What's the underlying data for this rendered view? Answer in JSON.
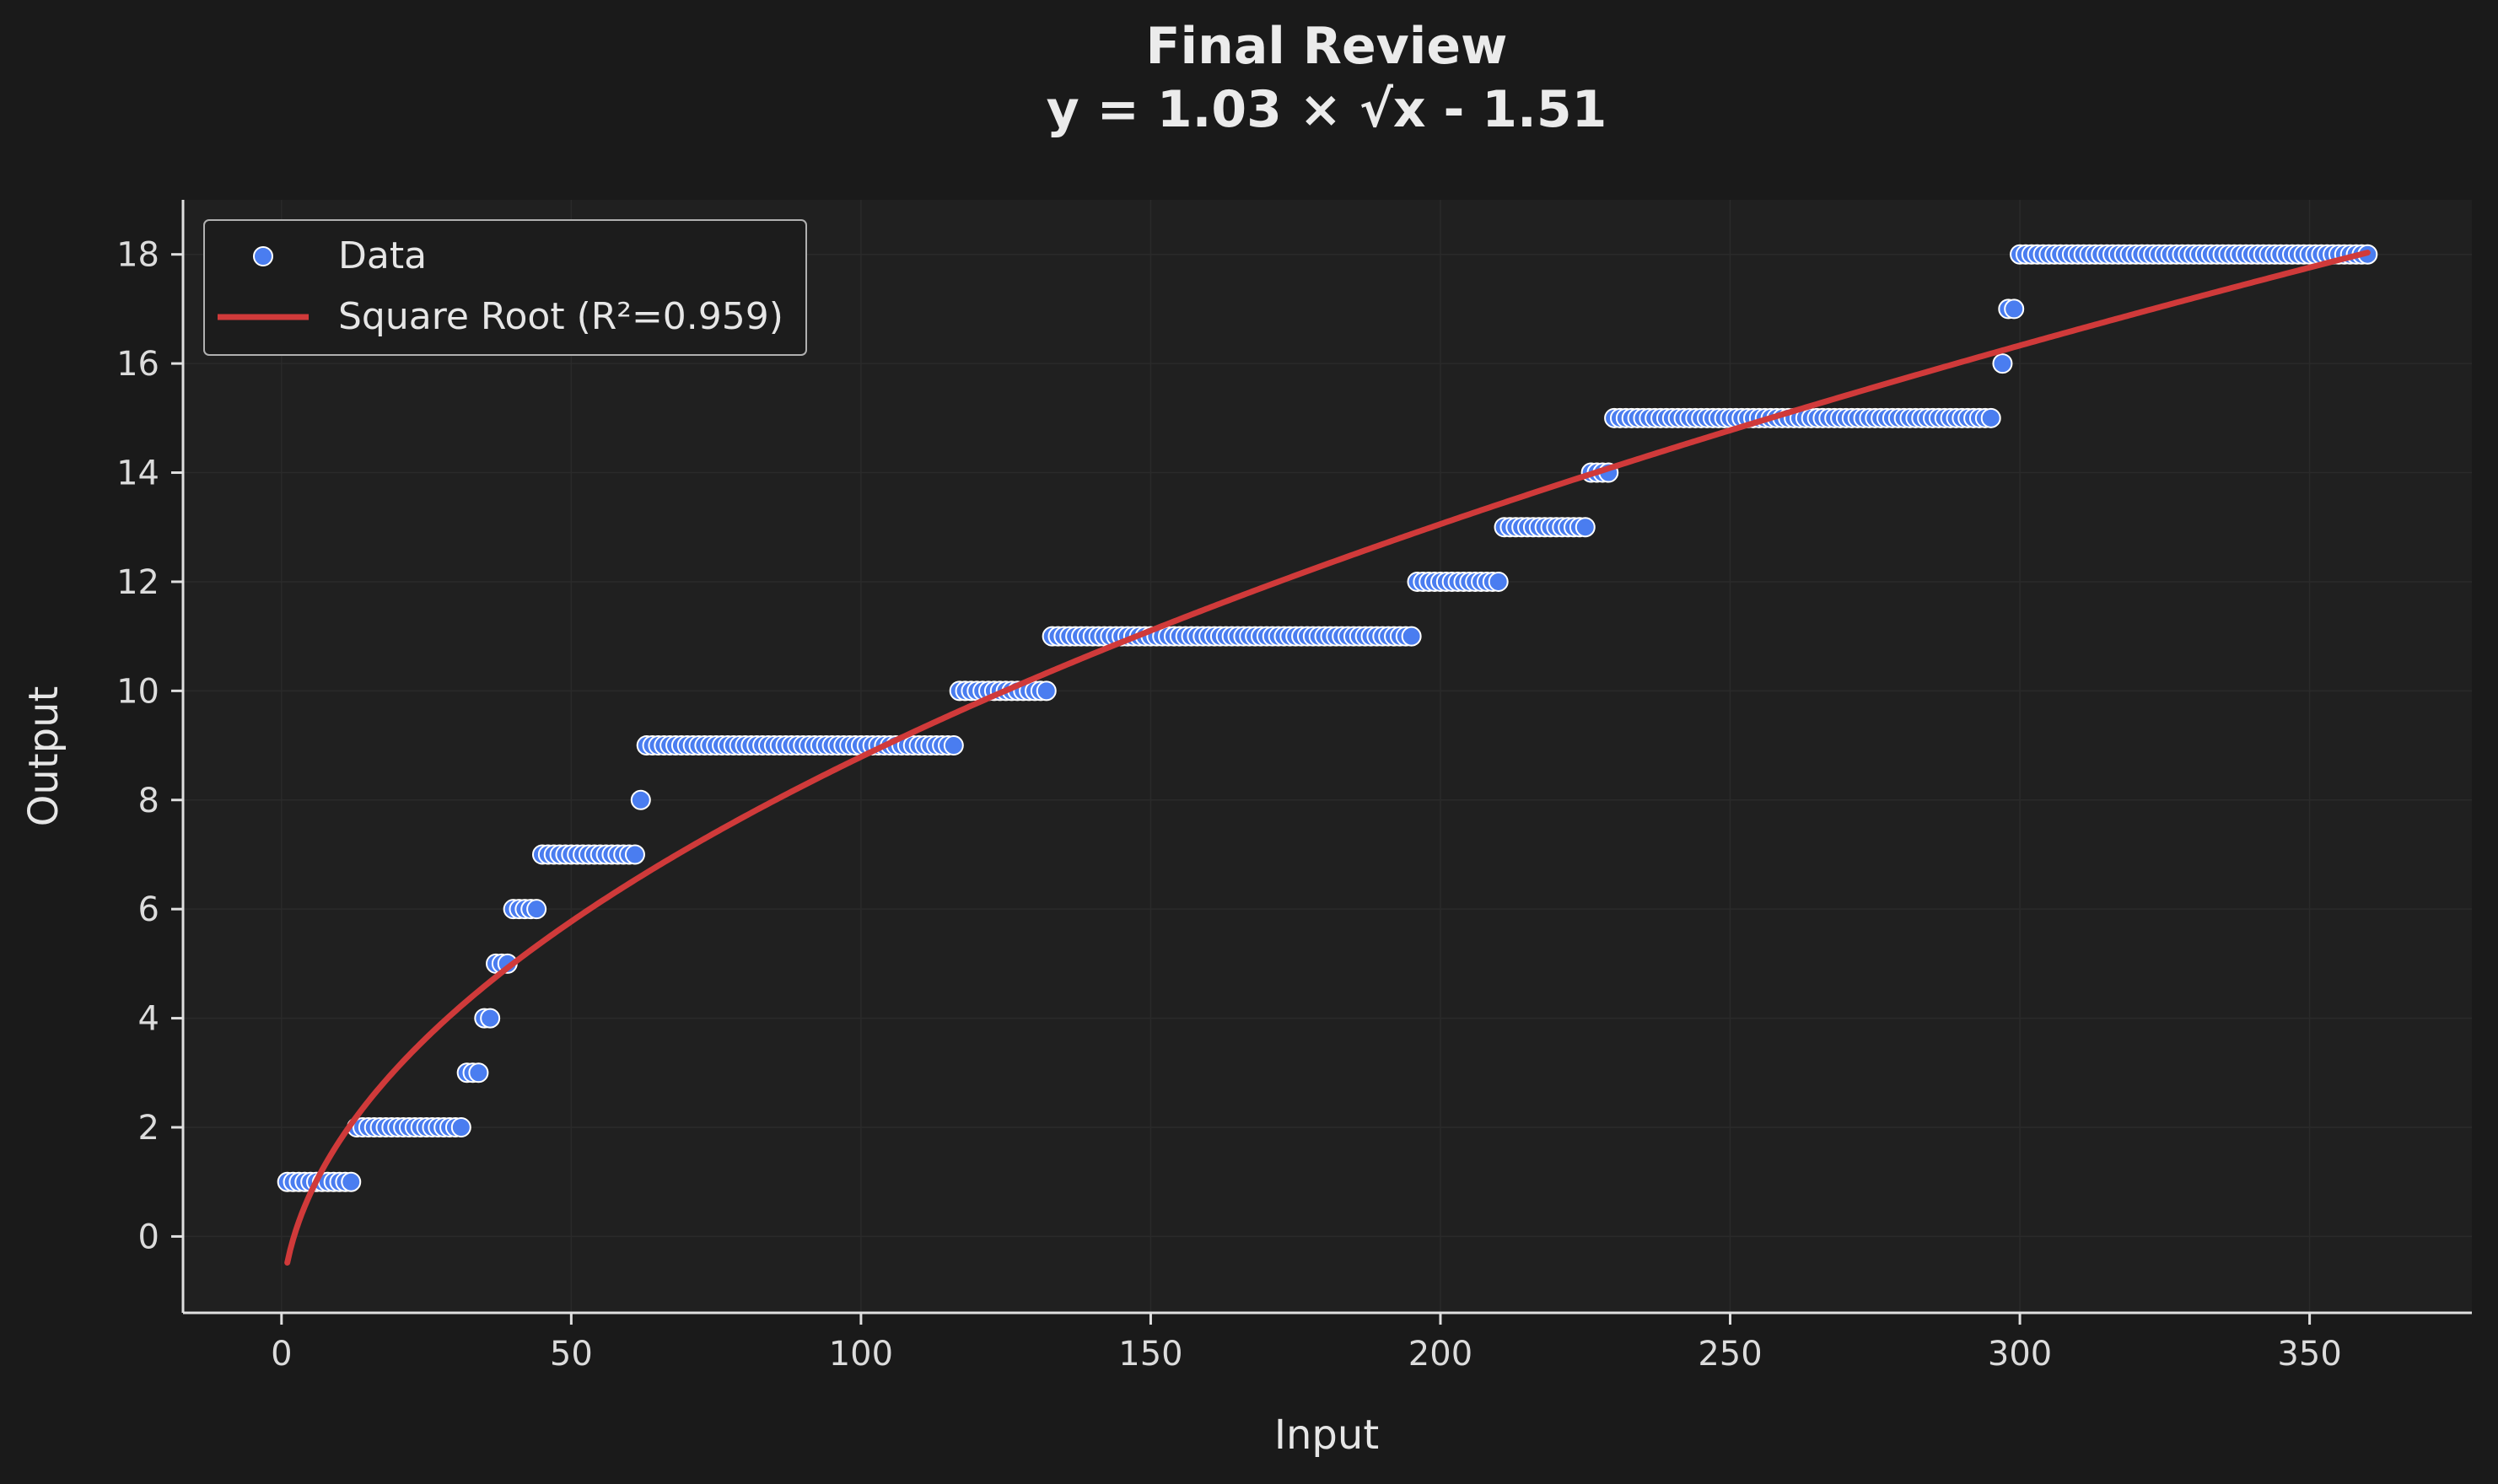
{
  "colors": {
    "background": "#1a1a1a",
    "plot_background": "#202020",
    "axis": "#e0e0e0",
    "grid": "#2a2a2a",
    "data_point": "#4a7df0",
    "data_edge": "#ffffff",
    "fit_line": "#d03a3a"
  },
  "chart_data": {
    "type": "scatter",
    "title": "Final Review",
    "subtitle": "y = 1.03 × √x - 1.51",
    "xlabel": "Input",
    "ylabel": "Output",
    "xlim": [
      -17,
      378
    ],
    "ylim": [
      -1.4,
      19
    ],
    "xticks": [
      0,
      50,
      100,
      150,
      200,
      250,
      300,
      350
    ],
    "yticks": [
      0,
      2,
      4,
      6,
      8,
      10,
      12,
      14,
      16,
      18
    ],
    "grid": true,
    "legend": {
      "placement": "top-left",
      "entries": [
        "Data",
        "Square Root (R²=0.959)"
      ]
    },
    "fit": {
      "name": "Square Root (R²=0.959)",
      "a": 1.03,
      "b": -1.51,
      "x_range": [
        1,
        360
      ]
    },
    "series": [
      {
        "name": "Data",
        "runs": [
          {
            "x_start": 1,
            "x_end": 12,
            "y": 1
          },
          {
            "x_start": 13,
            "x_end": 31,
            "y": 2
          },
          {
            "x_start": 32,
            "x_end": 34,
            "y": 3
          },
          {
            "x_start": 35,
            "x_end": 36,
            "y": 4
          },
          {
            "x_start": 37,
            "x_end": 39,
            "y": 5
          },
          {
            "x_start": 40,
            "x_end": 44,
            "y": 6
          },
          {
            "x_start": 45,
            "x_end": 61,
            "y": 7
          },
          {
            "x_start": 62,
            "x_end": 62,
            "y": 8
          },
          {
            "x_start": 63,
            "x_end": 116,
            "y": 9
          },
          {
            "x_start": 117,
            "x_end": 132,
            "y": 10
          },
          {
            "x_start": 133,
            "x_end": 195,
            "y": 11
          },
          {
            "x_start": 196,
            "x_end": 210,
            "y": 12
          },
          {
            "x_start": 211,
            "x_end": 225,
            "y": 13
          },
          {
            "x_start": 226,
            "x_end": 229,
            "y": 14
          },
          {
            "x_start": 230,
            "x_end": 295,
            "y": 15
          },
          {
            "x_start": 297,
            "x_end": 297,
            "y": 16
          },
          {
            "x_start": 298,
            "x_end": 299,
            "y": 17
          },
          {
            "x_start": 300,
            "x_end": 360,
            "y": 18
          }
        ]
      }
    ]
  }
}
